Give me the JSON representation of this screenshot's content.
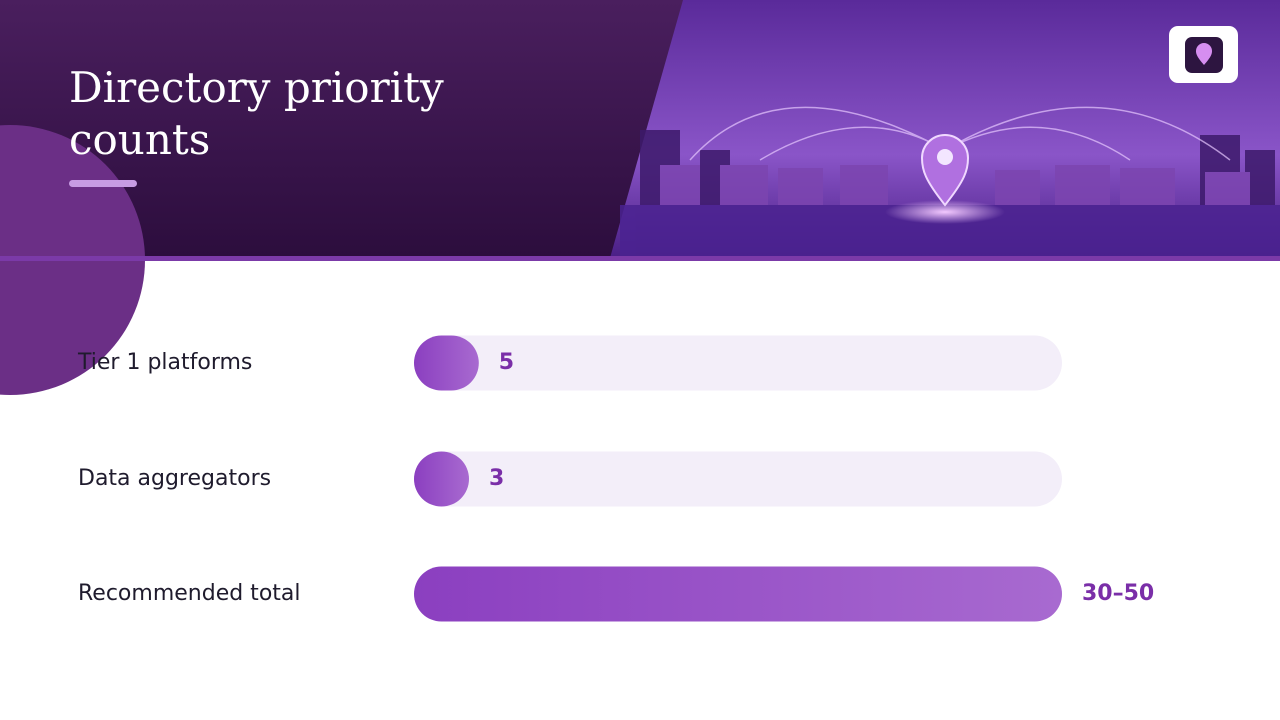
{
  "chart_data": {
    "type": "bar",
    "orientation": "horizontal",
    "title": "Directory priority counts",
    "categories": [
      "Tier 1 platforms",
      "Data aggregators",
      "Recommended total"
    ],
    "values": [
      5,
      3,
      50
    ],
    "value_labels": [
      "5",
      "3",
      "30–50"
    ],
    "color": "#8b3fc0",
    "xlim": [
      0,
      50
    ]
  }
}
